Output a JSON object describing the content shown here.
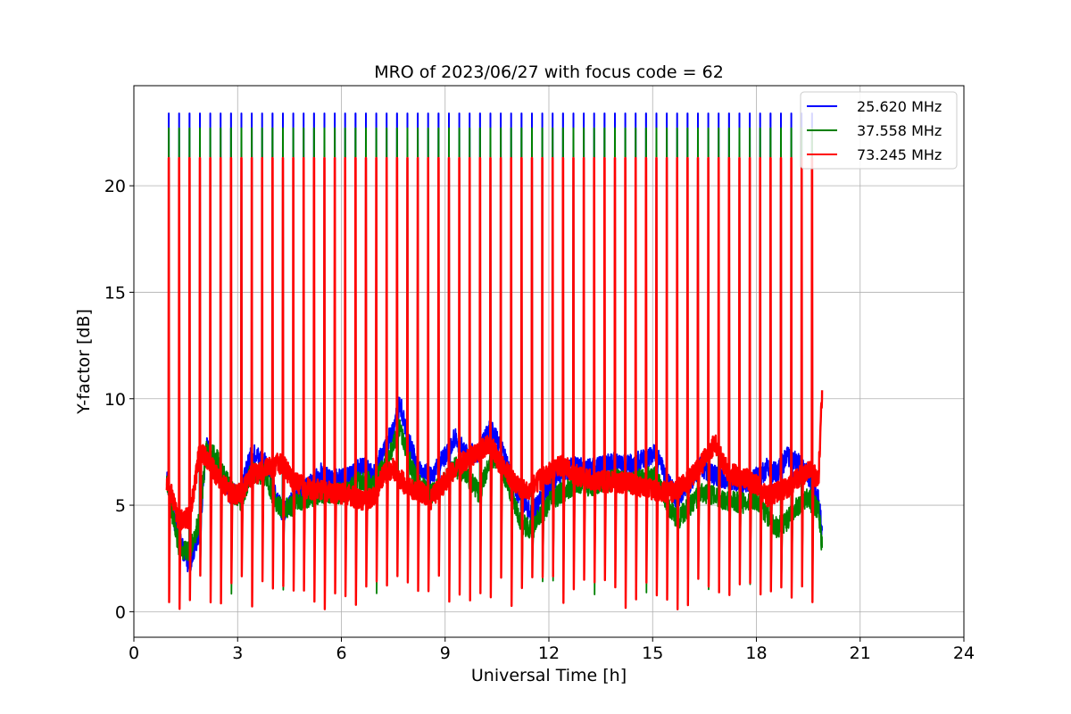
{
  "chart_data": {
    "type": "line",
    "title": "MRO of 2023/06/27 with focus code = 62",
    "xlabel": "Universal Time [h]",
    "ylabel": "Y-factor [dB]",
    "xlim": [
      0,
      24
    ],
    "ylim": [
      -1.2,
      24.7
    ],
    "xticks": [
      0,
      3,
      6,
      9,
      12,
      15,
      18,
      21,
      24
    ],
    "xtick_labels": [
      "0",
      "3",
      "6",
      "9",
      "12",
      "15",
      "18",
      "21",
      "24"
    ],
    "yticks": [
      0,
      5,
      10,
      15,
      20
    ],
    "ytick_labels": [
      "0",
      "5",
      "10",
      "15",
      "20"
    ],
    "grid": true,
    "legend_position": "top-right",
    "spike_period_h": 0.3,
    "spike_start_h": 1.0,
    "data_end_h": 19.9,
    "series": [
      {
        "name": "25.620 MHz",
        "color": "#0000ff",
        "spike_peak": 23.4,
        "dip_min": 1.6,
        "baseline": {
          "x": [
            0.95,
            1.0,
            1.3,
            1.6,
            1.9,
            2.1,
            2.4,
            2.8,
            3.1,
            3.4,
            3.8,
            4.1,
            4.3,
            4.6,
            5.0,
            5.4,
            5.8,
            6.2,
            6.6,
            6.9,
            7.2,
            7.5,
            7.7,
            7.9,
            8.2,
            8.6,
            9.0,
            9.3,
            9.6,
            10.0,
            10.3,
            10.6,
            10.9,
            11.2,
            11.5,
            11.8,
            12.1,
            12.4,
            12.8,
            13.2,
            13.6,
            14.0,
            14.4,
            14.8,
            15.1,
            15.4,
            15.7,
            16.0,
            16.4,
            16.8,
            17.2,
            17.6,
            18.0,
            18.3,
            18.6,
            18.9,
            19.2,
            19.5,
            19.8,
            19.9
          ],
          "y": [
            6.5,
            5.5,
            3.4,
            2.2,
            3.8,
            7.8,
            7.0,
            5.5,
            5.6,
            7.5,
            7.0,
            5.5,
            4.6,
            5.2,
            5.8,
            6.5,
            6.2,
            6.3,
            6.8,
            6.5,
            7.4,
            8.6,
            9.8,
            8.3,
            6.8,
            6.3,
            7.3,
            8.2,
            7.4,
            7.5,
            8.6,
            7.8,
            6.4,
            5.2,
            4.6,
            5.3,
            6.2,
            6.6,
            6.8,
            6.7,
            6.9,
            7.0,
            6.9,
            7.2,
            7.4,
            6.2,
            5.3,
            5.9,
            6.8,
            6.4,
            6.2,
            6.0,
            6.3,
            6.7,
            6.5,
            7.3,
            7.0,
            6.4,
            5.2,
            3.8
          ]
        }
      },
      {
        "name": "37.558 MHz",
        "color": "#008000",
        "spike_peak": 22.7,
        "dip_min": 0.8,
        "baseline": {
          "x": [
            0.95,
            1.0,
            1.3,
            1.6,
            1.9,
            2.1,
            2.4,
            2.8,
            3.1,
            3.4,
            3.8,
            4.1,
            4.3,
            4.6,
            5.0,
            5.4,
            5.8,
            6.2,
            6.6,
            6.9,
            7.2,
            7.5,
            7.7,
            7.9,
            8.2,
            8.6,
            9.0,
            9.3,
            9.6,
            10.0,
            10.3,
            10.6,
            10.9,
            11.2,
            11.5,
            11.8,
            12.1,
            12.4,
            12.8,
            13.2,
            13.6,
            14.0,
            14.4,
            14.8,
            15.1,
            15.4,
            15.7,
            16.0,
            16.4,
            16.8,
            17.2,
            17.6,
            18.0,
            18.3,
            18.6,
            18.9,
            19.2,
            19.5,
            19.8,
            19.9
          ],
          "y": [
            6.2,
            5.6,
            3.0,
            2.8,
            4.3,
            7.6,
            7.2,
            5.7,
            5.2,
            6.6,
            6.4,
            5.2,
            4.8,
            5.0,
            5.3,
            5.6,
            5.5,
            5.7,
            6.2,
            6.0,
            6.7,
            7.8,
            8.7,
            7.4,
            6.0,
            5.5,
            6.1,
            6.8,
            6.4,
            5.5,
            7.2,
            7.0,
            5.6,
            4.2,
            3.8,
            4.6,
            5.3,
            5.6,
            6.0,
            5.9,
            6.1,
            6.2,
            6.1,
            6.3,
            6.3,
            5.2,
            4.3,
            4.8,
            5.6,
            5.4,
            5.2,
            5.1,
            5.3,
            4.5,
            3.9,
            4.3,
            5.0,
            5.3,
            4.8,
            3.0
          ]
        }
      },
      {
        "name": "73.245 MHz",
        "color": "#ff0000",
        "spike_peak": 21.3,
        "dip_min": 0.1,
        "baseline": {
          "x": [
            0.95,
            1.0,
            1.3,
            1.6,
            1.9,
            2.1,
            2.4,
            2.8,
            3.1,
            3.4,
            3.8,
            4.1,
            4.3,
            4.6,
            5.0,
            5.4,
            5.8,
            6.2,
            6.6,
            6.9,
            7.2,
            7.5,
            7.7,
            7.9,
            8.2,
            8.6,
            9.0,
            9.3,
            9.6,
            10.0,
            10.3,
            10.6,
            10.9,
            11.2,
            11.5,
            11.8,
            12.1,
            12.4,
            12.8,
            13.2,
            13.6,
            14.0,
            14.4,
            14.8,
            15.1,
            15.4,
            15.7,
            16.0,
            16.4,
            16.8,
            17.2,
            17.6,
            18.0,
            18.3,
            18.6,
            18.9,
            19.2,
            19.5,
            19.8,
            19.9
          ],
          "y": [
            6.0,
            6.0,
            4.3,
            4.4,
            7.5,
            7.2,
            6.4,
            5.5,
            5.6,
            6.4,
            6.7,
            6.9,
            7.0,
            6.1,
            5.8,
            5.7,
            5.6,
            5.5,
            5.2,
            5.3,
            6.4,
            6.7,
            6.2,
            5.9,
            5.7,
            5.3,
            6.1,
            6.8,
            7.1,
            7.5,
            7.9,
            6.9,
            6.3,
            5.7,
            5.8,
            6.3,
            6.6,
            6.9,
            6.4,
            6.2,
            6.1,
            6.1,
            6.0,
            5.8,
            5.7,
            5.6,
            5.7,
            6.1,
            6.9,
            7.9,
            6.5,
            6.3,
            6.0,
            5.4,
            5.6,
            5.8,
            6.3,
            6.6,
            6.3,
            10.4
          ]
        }
      }
    ]
  }
}
